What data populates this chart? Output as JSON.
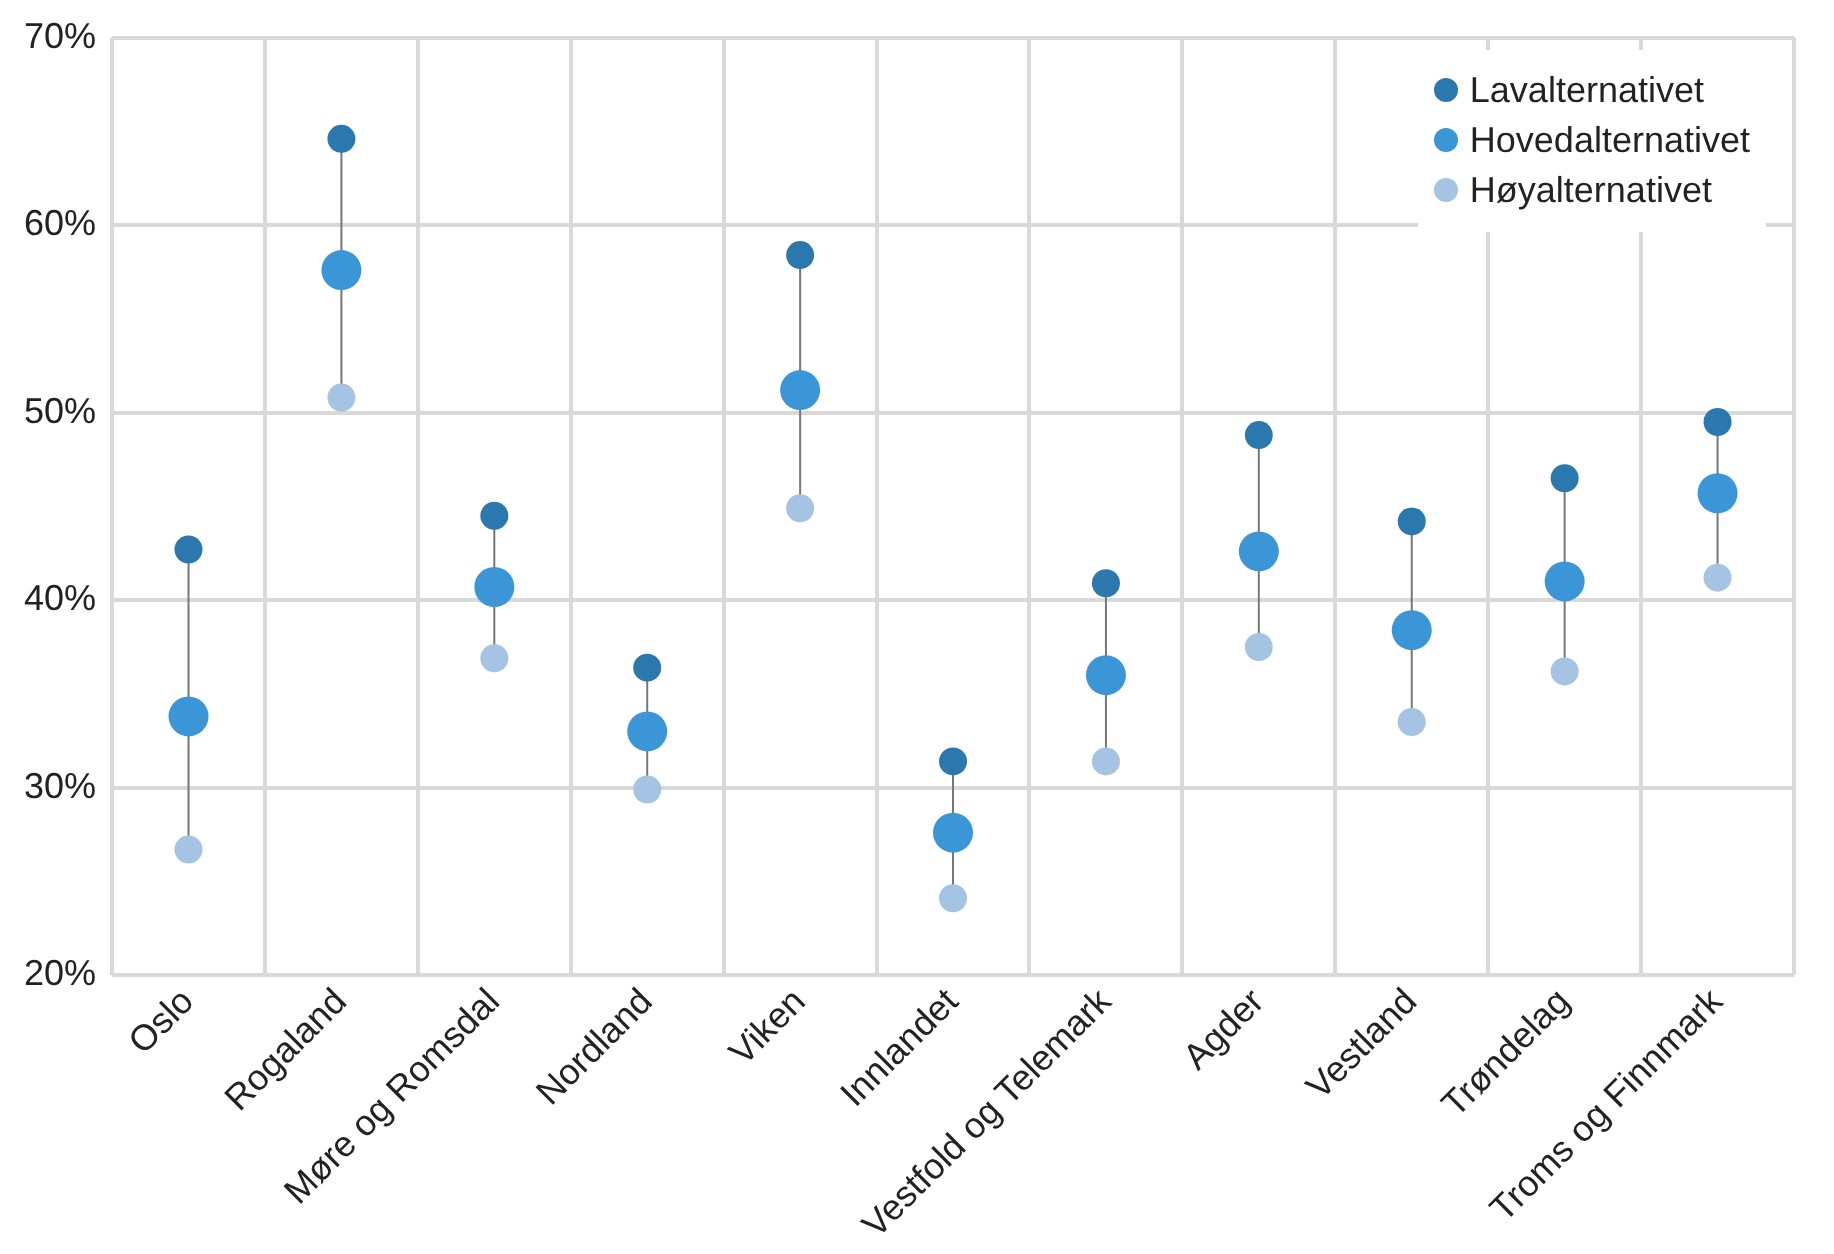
{
  "chart_data": {
    "type": "scatter",
    "categories": [
      "Oslo",
      "Rogaland",
      "Møre og Romsdal",
      "Nordland",
      "Viken",
      "Innlandet",
      "Vestfold og Telemark",
      "Agder",
      "Vestland",
      "Trøndelag",
      "Troms og Finnmark"
    ],
    "series": [
      {
        "name": "Lavalternativet",
        "color": "#2a78ad",
        "values": [
          42.7,
          64.6,
          44.5,
          36.4,
          58.4,
          31.4,
          40.9,
          48.8,
          44.2,
          46.5,
          49.5
        ]
      },
      {
        "name": "Hovedalternativet",
        "color": "#3a96d6",
        "values": [
          33.8,
          57.6,
          40.7,
          33.0,
          51.2,
          27.6,
          36.0,
          42.6,
          38.4,
          41.0,
          45.7
        ]
      },
      {
        "name": "Høyalternativet",
        "color": "#a5c3e3",
        "values": [
          26.7,
          50.8,
          36.9,
          29.9,
          44.9,
          24.1,
          31.4,
          37.5,
          33.5,
          36.2,
          41.2
        ]
      }
    ],
    "ylim": [
      20,
      70
    ],
    "yticks": [
      {
        "value": 20,
        "label": "20%"
      },
      {
        "value": 30,
        "label": "30%"
      },
      {
        "value": 40,
        "label": "40%"
      },
      {
        "value": 50,
        "label": "50%"
      },
      {
        "value": 60,
        "label": "60%"
      },
      {
        "value": 70,
        "label": "70%"
      }
    ],
    "grid": true,
    "legend": "top right",
    "marker": "circle"
  }
}
